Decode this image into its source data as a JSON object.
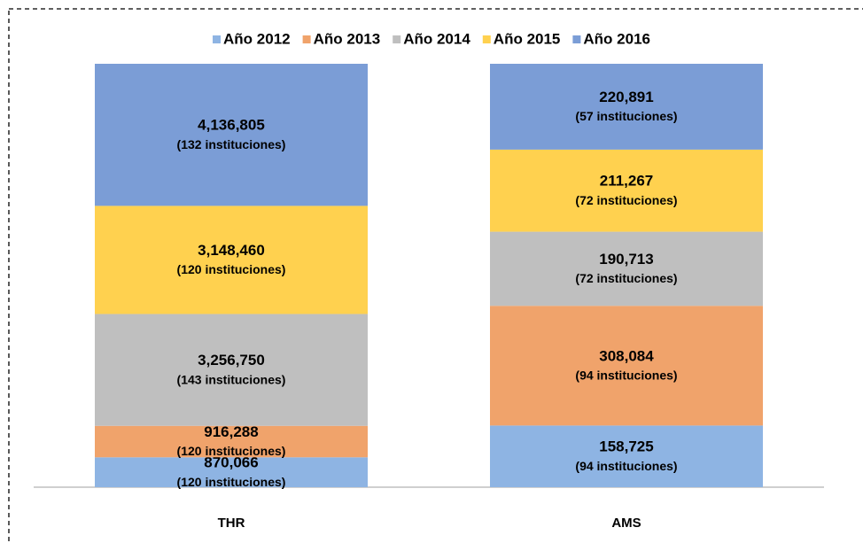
{
  "chart_data": {
    "type": "bar",
    "stacking": "percent",
    "legend": "top",
    "categories": [
      "THR",
      "AMS"
    ],
    "series": [
      {
        "name": "Año 2012",
        "color": "#8EB4E3",
        "values": [
          870066,
          158725
        ],
        "value_labels": [
          "870,066",
          "158,725"
        ],
        "sublabels": [
          "(120 instituciones)",
          "(94 instituciones)"
        ]
      },
      {
        "name": "Año 2013",
        "color": "#F0A36B",
        "values": [
          916288,
          308084
        ],
        "value_labels": [
          "916,288",
          "308,084"
        ],
        "sublabels": [
          "(120 instituciones)",
          "(94 instituciones)"
        ]
      },
      {
        "name": "Año 2014",
        "color": "#BFBFBF",
        "values": [
          3256750,
          190713
        ],
        "value_labels": [
          "3,256,750",
          "190,713"
        ],
        "sublabels": [
          "(143 instituciones)",
          "(72 instituciones)"
        ]
      },
      {
        "name": "Año 2015",
        "color": "#FFD14F",
        "values": [
          3148460,
          211267
        ],
        "value_labels": [
          "3,148,460",
          "211,267"
        ],
        "sublabels": [
          "(120 instituciones)",
          "(72 instituciones)"
        ]
      },
      {
        "name": "Año 2016",
        "color": "#7B9DD6",
        "values": [
          4136805,
          220891
        ],
        "value_labels": [
          "4,136,805",
          "220,891"
        ],
        "sublabels": [
          "(132 instituciones)",
          "(57 instituciones)"
        ]
      }
    ]
  }
}
